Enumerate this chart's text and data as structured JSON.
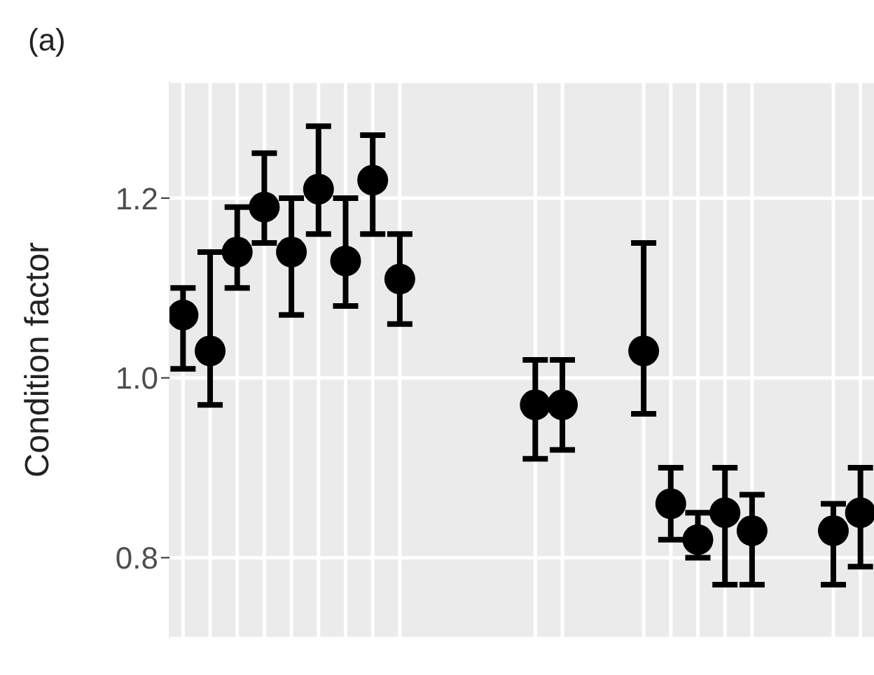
{
  "chart_data": {
    "type": "scatter",
    "title": "(a)",
    "ylabel": "Condition factor",
    "categories": [
      null,
      null,
      null,
      null,
      null,
      null,
      null,
      null,
      null,
      null,
      null,
      null,
      null,
      null,
      null,
      null,
      null,
      null,
      null,
      null,
      null,
      null,
      null,
      null,
      null,
      null
    ],
    "values": [
      1.07,
      1.03,
      1.14,
      1.19,
      1.14,
      1.21,
      1.13,
      1.22,
      1.11,
      null,
      null,
      null,
      null,
      0.97,
      0.97,
      null,
      null,
      1.03,
      0.86,
      0.82,
      0.85,
      0.83,
      null,
      null,
      0.83,
      0.85
    ],
    "errors": [
      [
        1.01,
        1.1
      ],
      [
        0.97,
        1.14
      ],
      [
        1.1,
        1.19
      ],
      [
        1.15,
        1.25
      ],
      [
        1.07,
        1.2
      ],
      [
        1.16,
        1.28
      ],
      [
        1.08,
        1.2
      ],
      [
        1.16,
        1.27
      ],
      [
        1.06,
        1.16
      ],
      null,
      null,
      null,
      null,
      [
        0.91,
        1.02
      ],
      [
        0.92,
        1.02
      ],
      null,
      null,
      [
        0.96,
        1.15
      ],
      [
        0.82,
        0.9
      ],
      [
        0.8,
        0.85
      ],
      [
        0.77,
        0.9
      ],
      [
        0.77,
        0.87
      ],
      null,
      null,
      [
        0.77,
        0.86
      ],
      [
        0.79,
        0.9
      ]
    ],
    "color": "#000000",
    "marker": "circle",
    "ylim": [
      0.71,
      1.33
    ],
    "yticks": [
      {
        "value": 0.8,
        "label": "0.8"
      },
      {
        "value": 1.0,
        "label": "1.0"
      },
      {
        "value": 1.2,
        "label": "1.2"
      }
    ],
    "grid": true,
    "tick_labels": "y"
  }
}
